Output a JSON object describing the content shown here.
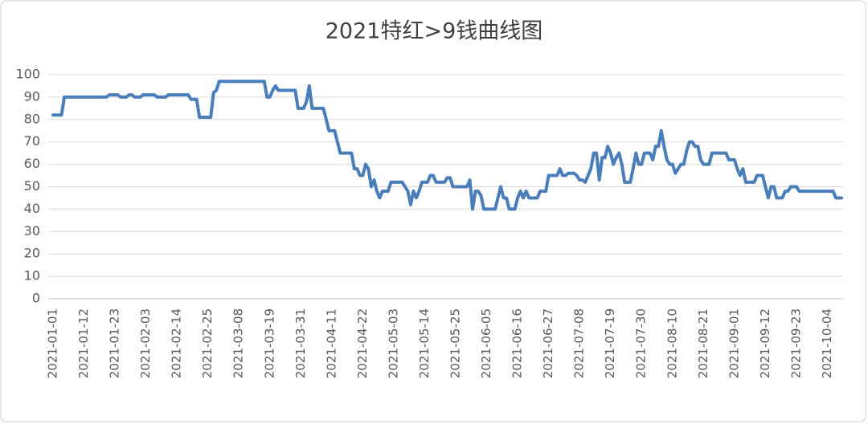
{
  "chart_data": {
    "type": "line",
    "title": "2021特红>9钱曲线图",
    "categories": [
      "2021-01-01",
      null,
      null,
      null,
      null,
      null,
      null,
      null,
      null,
      null,
      null,
      "2021-01-12",
      null,
      null,
      null,
      null,
      null,
      null,
      null,
      null,
      null,
      null,
      "2021-01-23",
      null,
      null,
      null,
      null,
      null,
      null,
      null,
      null,
      null,
      null,
      "2021-02-03",
      null,
      null,
      null,
      null,
      null,
      null,
      null,
      null,
      null,
      null,
      "2021-02-14",
      null,
      null,
      null,
      null,
      null,
      null,
      null,
      null,
      null,
      null,
      "2021-02-25",
      null,
      null,
      null,
      null,
      null,
      null,
      null,
      null,
      null,
      null,
      "2021-03-08",
      null,
      null,
      null,
      null,
      null,
      null,
      null,
      null,
      null,
      null,
      "2021-03-19",
      null,
      null,
      null,
      null,
      null,
      null,
      null,
      null,
      null,
      null,
      "2021-03-31",
      null,
      null,
      null,
      null,
      null,
      null,
      null,
      null,
      null,
      null,
      "2021-04-11",
      null,
      null,
      null,
      null,
      null,
      null,
      null,
      null,
      null,
      null,
      "2021-04-22",
      null,
      null,
      null,
      null,
      null,
      null,
      null,
      null,
      null,
      null,
      "2021-05-03",
      null,
      null,
      null,
      null,
      null,
      null,
      null,
      null,
      null,
      null,
      "2021-05-14",
      null,
      null,
      null,
      null,
      null,
      null,
      null,
      null,
      null,
      null,
      "2021-05-25",
      null,
      null,
      null,
      null,
      null,
      null,
      null,
      null,
      null,
      null,
      "2021-06-05",
      null,
      null,
      null,
      null,
      null,
      null,
      null,
      null,
      null,
      null,
      "2021-06-16",
      null,
      null,
      null,
      null,
      null,
      null,
      null,
      null,
      null,
      null,
      "2021-06-27",
      null,
      null,
      null,
      null,
      null,
      null,
      null,
      null,
      null,
      null,
      "2021-07-08",
      null,
      null,
      null,
      null,
      null,
      null,
      null,
      null,
      null,
      null,
      "2021-07-19",
      null,
      null,
      null,
      null,
      null,
      null,
      null,
      null,
      null,
      null,
      "2021-07-30",
      null,
      null,
      null,
      null,
      null,
      null,
      null,
      null,
      null,
      null,
      "2021-08-10",
      null,
      null,
      null,
      null,
      null,
      null,
      null,
      null,
      null,
      null,
      "2021-08-21",
      null,
      null,
      null,
      null,
      null,
      null,
      null,
      null,
      null,
      null,
      "2021-09-01",
      null,
      null,
      null,
      null,
      null,
      null,
      null,
      null,
      null,
      null,
      "2021-09-12",
      null,
      null,
      null,
      null,
      null,
      null,
      null,
      null,
      null,
      null,
      "2021-09-23",
      null,
      null,
      null,
      null,
      null,
      null,
      null,
      null,
      null,
      null,
      "2021-10-04",
      null,
      null,
      null,
      null,
      null
    ],
    "values": [
      82,
      82,
      82,
      82,
      90,
      90,
      90,
      90,
      90,
      90,
      90,
      90,
      90,
      90,
      90,
      90,
      90,
      90,
      90,
      90,
      91,
      91,
      91,
      91,
      90,
      90,
      90,
      91,
      91,
      90,
      90,
      90,
      91,
      91,
      91,
      91,
      91,
      90,
      90,
      90,
      90,
      91,
      91,
      91,
      91,
      91,
      91,
      91,
      91,
      89,
      89,
      89,
      81,
      81,
      81,
      81,
      81,
      92,
      93,
      97,
      97,
      97,
      97,
      97,
      97,
      97,
      97,
      97,
      97,
      97,
      97,
      97,
      97,
      97,
      97,
      97,
      90,
      90,
      93,
      95,
      93,
      93,
      93,
      93,
      93,
      93,
      93,
      85,
      85,
      85,
      88,
      95,
      85,
      85,
      85,
      85,
      85,
      80,
      75,
      75,
      75,
      70,
      65,
      65,
      65,
      65,
      65,
      58,
      58,
      55,
      55,
      60,
      58,
      50,
      53,
      48,
      45,
      48,
      48,
      48,
      52,
      52,
      52,
      52,
      52,
      50,
      48,
      42,
      48,
      45,
      48,
      52,
      52,
      52,
      55,
      55,
      52,
      52,
      52,
      52,
      54,
      54,
      50,
      50,
      50,
      50,
      50,
      50,
      53,
      40,
      48,
      48,
      46,
      40,
      40,
      40,
      40,
      40,
      45,
      50,
      45,
      45,
      40,
      40,
      40,
      45,
      48,
      45,
      48,
      45,
      45,
      45,
      45,
      48,
      48,
      48,
      55,
      55,
      55,
      55,
      58,
      55,
      55,
      56,
      56,
      56,
      55,
      53,
      53,
      52,
      55,
      58,
      65,
      65,
      53,
      63,
      63,
      68,
      65,
      60,
      63,
      65,
      60,
      52,
      52,
      52,
      58,
      65,
      60,
      60,
      65,
      65,
      65,
      62,
      68,
      68,
      75,
      68,
      62,
      60,
      60,
      56,
      58,
      60,
      60,
      66,
      70,
      70,
      68,
      68,
      62,
      60,
      60,
      60,
      65,
      65,
      65,
      65,
      65,
      65,
      62,
      62,
      62,
      58,
      55,
      58,
      52,
      52,
      52,
      52,
      55,
      55,
      55,
      50,
      45,
      50,
      50,
      45,
      45,
      45,
      48,
      48,
      50,
      50,
      50,
      48,
      48,
      48,
      48,
      48,
      48,
      48,
      48,
      48,
      48,
      48,
      48,
      48,
      45,
      45,
      45
    ],
    "color": "#4a7ebb",
    "ylim": [
      0,
      100
    ],
    "yticks": [
      0,
      10,
      20,
      30,
      40,
      50,
      60,
      70,
      80,
      90,
      100
    ],
    "grid": true
  }
}
